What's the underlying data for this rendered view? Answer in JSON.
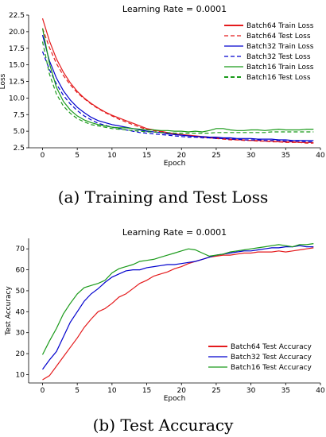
{
  "chart_data": [
    {
      "type": "line",
      "title": "Learning Rate = 0.0001",
      "xlabel": "Epoch",
      "ylabel": "Loss",
      "xlim": [
        -2,
        40
      ],
      "ylim": [
        2.5,
        22.5
      ],
      "xticks": [
        0,
        5,
        10,
        15,
        20,
        25,
        30,
        35,
        40
      ],
      "yticks": [
        2.5,
        5.0,
        7.5,
        10.0,
        12.5,
        15.0,
        17.5,
        20.0,
        22.5
      ],
      "grid": false,
      "legend_position": "top-right",
      "series": [
        {
          "name": "Batch64 Train Loss",
          "color": "#e41a1c",
          "dash": "solid",
          "x": [
            0,
            1,
            2,
            3,
            4,
            5,
            6,
            7,
            8,
            9,
            10,
            11,
            12,
            13,
            14,
            15,
            16,
            17,
            18,
            19,
            20,
            21,
            22,
            23,
            24,
            25,
            26,
            27,
            28,
            29,
            30,
            31,
            32,
            33,
            34,
            35,
            36,
            37,
            38,
            39
          ],
          "y": [
            22.0,
            18.6,
            15.9,
            13.9,
            12.3,
            11.0,
            10.0,
            9.2,
            8.5,
            7.9,
            7.4,
            7.0,
            6.6,
            6.2,
            5.8,
            5.4,
            5.2,
            5.0,
            4.8,
            4.6,
            4.5,
            4.4,
            4.3,
            4.2,
            4.1,
            4.0,
            3.9,
            3.8,
            3.7,
            3.7,
            3.6,
            3.6,
            3.5,
            3.5,
            3.4,
            3.4,
            3.4,
            3.3,
            3.3,
            3.3
          ]
        },
        {
          "name": "Batch64 Test Loss",
          "color": "#e41a1c",
          "dash": "dashed",
          "x": [
            0,
            1,
            2,
            3,
            4,
            5,
            6,
            7,
            8,
            9,
            10,
            11,
            12,
            13,
            14,
            15,
            16,
            17,
            18,
            19,
            20,
            21,
            22,
            23,
            24,
            25,
            26,
            27,
            28,
            29,
            30,
            31,
            32,
            33,
            34,
            35,
            36,
            37,
            38,
            39
          ],
          "y": [
            20.5,
            17.6,
            15.2,
            13.4,
            12.0,
            10.8,
            9.9,
            9.1,
            8.4,
            7.8,
            7.3,
            6.8,
            6.4,
            6.0,
            5.6,
            5.3,
            5.1,
            4.9,
            4.7,
            4.5,
            4.4,
            4.3,
            4.2,
            4.1,
            4.0,
            3.9,
            3.8,
            3.7,
            3.7,
            3.6,
            3.6,
            3.5,
            3.5,
            3.4,
            3.4,
            3.3,
            3.3,
            3.3,
            3.2,
            3.2
          ]
        },
        {
          "name": "Batch32 Train Loss",
          "color": "#0000cd",
          "dash": "solid",
          "x": [
            0,
            1,
            2,
            3,
            4,
            5,
            6,
            7,
            8,
            9,
            10,
            11,
            12,
            13,
            14,
            15,
            16,
            17,
            18,
            19,
            20,
            21,
            22,
            23,
            24,
            25,
            26,
            27,
            28,
            29,
            30,
            31,
            32,
            33,
            34,
            35,
            36,
            37,
            38,
            39
          ],
          "y": [
            19.5,
            15.6,
            13.0,
            11.1,
            9.7,
            8.6,
            7.8,
            7.1,
            6.6,
            6.3,
            6.0,
            5.8,
            5.6,
            5.4,
            5.2,
            5.0,
            4.9,
            4.8,
            4.6,
            4.5,
            4.4,
            4.3,
            4.2,
            4.2,
            4.1,
            4.1,
            4.0,
            4.0,
            3.9,
            3.9,
            3.9,
            3.8,
            3.8,
            3.8,
            3.7,
            3.7,
            3.6,
            3.6,
            3.6,
            3.6
          ]
        },
        {
          "name": "Batch32 Test Loss",
          "color": "#0000cd",
          "dash": "dashed",
          "x": [
            0,
            1,
            2,
            3,
            4,
            5,
            6,
            7,
            8,
            9,
            10,
            11,
            12,
            13,
            14,
            15,
            16,
            17,
            18,
            19,
            20,
            21,
            22,
            23,
            24,
            25,
            26,
            27,
            28,
            29,
            30,
            31,
            32,
            33,
            34,
            35,
            36,
            37,
            38,
            39
          ],
          "y": [
            17.0,
            14.3,
            12.1,
            10.4,
            9.1,
            8.1,
            7.3,
            6.7,
            6.2,
            5.9,
            5.6,
            5.4,
            5.2,
            5.0,
            4.8,
            4.7,
            4.6,
            4.5,
            4.4,
            4.3,
            4.2,
            4.1,
            4.1,
            4.0,
            4.0,
            3.9,
            3.9,
            3.8,
            3.8,
            3.7,
            3.7,
            3.7,
            3.6,
            3.6,
            3.6,
            3.5,
            3.5,
            3.5,
            3.4,
            3.4
          ]
        },
        {
          "name": "Batch16 Train Loss",
          "color": "#1a9a1a",
          "dash": "solid",
          "x": [
            0,
            1,
            2,
            3,
            4,
            5,
            6,
            7,
            8,
            9,
            10,
            11,
            12,
            13,
            14,
            15,
            16,
            17,
            18,
            19,
            20,
            21,
            22,
            23,
            24,
            25,
            26,
            27,
            28,
            29,
            30,
            31,
            32,
            33,
            34,
            35,
            36,
            37,
            38,
            39
          ],
          "y": [
            20.5,
            15.2,
            11.6,
            9.5,
            8.2,
            7.3,
            6.7,
            6.3,
            6.0,
            5.8,
            5.6,
            5.5,
            5.5,
            5.4,
            5.3,
            5.2,
            5.2,
            5.1,
            5.1,
            5.0,
            5.0,
            4.9,
            5.0,
            4.9,
            5.1,
            5.4,
            5.4,
            5.2,
            5.1,
            5.1,
            5.2,
            5.2,
            5.1,
            5.2,
            5.3,
            5.2,
            5.2,
            5.2,
            5.3,
            5.3
          ]
        },
        {
          "name": "Batch16 Test Loss",
          "color": "#1a9a1a",
          "dash": "dashed",
          "x": [
            0,
            1,
            2,
            3,
            4,
            5,
            6,
            7,
            8,
            9,
            10,
            11,
            12,
            13,
            14,
            15,
            16,
            17,
            18,
            19,
            20,
            21,
            22,
            23,
            24,
            25,
            26,
            27,
            28,
            29,
            30,
            31,
            32,
            33,
            34,
            35,
            36,
            37,
            38,
            39
          ],
          "y": [
            18.5,
            13.6,
            10.6,
            8.8,
            7.7,
            6.9,
            6.4,
            6.0,
            5.8,
            5.6,
            5.4,
            5.3,
            5.2,
            5.1,
            5.0,
            4.9,
            4.9,
            4.8,
            4.8,
            4.7,
            4.7,
            4.7,
            4.7,
            4.7,
            4.7,
            4.8,
            4.8,
            4.8,
            4.8,
            4.8,
            4.8,
            4.8,
            4.8,
            4.9,
            4.9,
            4.9,
            4.9,
            4.9,
            4.9,
            4.9
          ]
        }
      ]
    },
    {
      "type": "line",
      "title": "Learning Rate = 0.0001",
      "xlabel": "Epoch",
      "ylabel": "Test Accuracy",
      "xlim": [
        -2,
        40
      ],
      "ylim": [
        6,
        75
      ],
      "xticks": [
        0,
        5,
        10,
        15,
        20,
        25,
        30,
        35,
        40
      ],
      "yticks": [
        10,
        20,
        30,
        40,
        50,
        60,
        70
      ],
      "grid": false,
      "legend_position": "bottom-right",
      "series": [
        {
          "name": "Batch64 Test Accuracy",
          "color": "#e41a1c",
          "dash": "solid",
          "x": [
            0,
            1,
            2,
            3,
            4,
            5,
            6,
            7,
            8,
            9,
            10,
            11,
            12,
            13,
            14,
            15,
            16,
            17,
            18,
            19,
            20,
            21,
            22,
            23,
            24,
            25,
            26,
            27,
            28,
            29,
            30,
            31,
            32,
            33,
            34,
            35,
            36,
            37,
            38,
            39
          ],
          "y": [
            7.5,
            9.5,
            14.0,
            18.5,
            23.0,
            27.5,
            32.5,
            36.5,
            40.0,
            41.5,
            44.0,
            47.0,
            48.5,
            51.0,
            53.5,
            55.0,
            57.0,
            58.0,
            59.0,
            60.5,
            61.5,
            63.0,
            64.0,
            65.0,
            66.0,
            66.5,
            67.0,
            67.0,
            67.5,
            68.0,
            68.0,
            68.5,
            68.5,
            68.5,
            69.0,
            68.5,
            69.0,
            69.5,
            70.0,
            70.5
          ]
        },
        {
          "name": "Batch32 Test Accuracy",
          "color": "#0000cd",
          "dash": "solid",
          "x": [
            0,
            1,
            2,
            3,
            4,
            5,
            6,
            7,
            8,
            9,
            10,
            11,
            12,
            13,
            14,
            15,
            16,
            17,
            18,
            19,
            20,
            21,
            22,
            23,
            24,
            25,
            26,
            27,
            28,
            29,
            30,
            31,
            32,
            33,
            34,
            35,
            36,
            37,
            38,
            39
          ],
          "y": [
            12.5,
            17.0,
            21.0,
            28.0,
            35.0,
            40.0,
            45.0,
            48.5,
            51.0,
            54.0,
            56.5,
            58.0,
            59.5,
            60.0,
            60.0,
            61.0,
            61.5,
            62.0,
            62.5,
            62.5,
            63.0,
            63.5,
            64.0,
            65.0,
            66.0,
            67.0,
            67.5,
            68.0,
            68.5,
            69.0,
            69.0,
            69.5,
            70.0,
            70.5,
            70.5,
            71.0,
            71.0,
            71.5,
            71.0,
            71.0
          ]
        },
        {
          "name": "Batch16 Test Accuracy",
          "color": "#1a9a1a",
          "dash": "solid",
          "x": [
            0,
            1,
            2,
            3,
            4,
            5,
            6,
            7,
            8,
            9,
            10,
            11,
            12,
            13,
            14,
            15,
            16,
            17,
            18,
            19,
            20,
            21,
            22,
            23,
            24,
            25,
            26,
            27,
            28,
            29,
            30,
            31,
            32,
            33,
            34,
            35,
            36,
            37,
            38,
            39
          ],
          "y": [
            19.5,
            26.0,
            32.0,
            39.0,
            44.0,
            48.5,
            51.5,
            52.5,
            53.5,
            55.0,
            58.5,
            60.5,
            61.5,
            62.5,
            64.0,
            64.5,
            65.0,
            66.0,
            67.0,
            68.0,
            69.0,
            70.0,
            69.5,
            68.0,
            66.5,
            67.0,
            67.5,
            68.5,
            69.0,
            69.5,
            70.0,
            70.5,
            71.0,
            71.5,
            72.0,
            71.5,
            71.0,
            72.0,
            72.0,
            72.5
          ]
        }
      ]
    }
  ],
  "captions": {
    "a": "(a) Training and Test Loss",
    "b": "(b) Test Accuracy"
  }
}
